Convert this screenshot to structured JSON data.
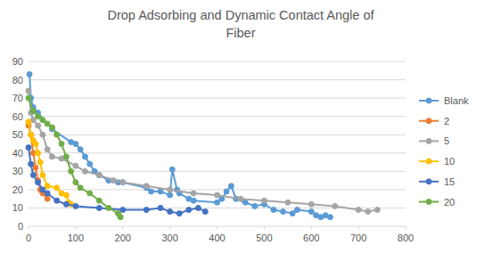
{
  "chart_data": {
    "type": "line",
    "title": "Drop Adsorbing and Dynamic Contact Angle of Fiber",
    "xlim": [
      0,
      800
    ],
    "xticks": [
      0,
      100,
      200,
      300,
      400,
      500,
      600,
      700,
      800
    ],
    "ylim": [
      0,
      90
    ],
    "yticks": [
      0,
      10,
      20,
      30,
      40,
      50,
      60,
      70,
      80,
      90
    ],
    "grid": true,
    "legend": "right",
    "marker": "circle",
    "series": [
      {
        "name": "Blank",
        "color": "#5b9bd5",
        "x": [
          2,
          5,
          10,
          20,
          50,
          90,
          100,
          110,
          120,
          130,
          140,
          150,
          170,
          190,
          200,
          250,
          260,
          280,
          300,
          305,
          315,
          320,
          340,
          350,
          400,
          410,
          420,
          430,
          440,
          460,
          480,
          500,
          520,
          540,
          560,
          570,
          600,
          610,
          620,
          630,
          640
        ],
        "values": [
          83,
          70,
          65,
          62,
          53,
          46,
          45,
          42,
          38,
          34,
          30,
          28,
          25,
          24,
          24,
          21,
          19,
          19,
          17,
          31,
          20,
          18,
          15,
          14,
          13,
          15,
          19,
          22,
          15,
          13,
          11,
          12,
          9,
          8,
          7,
          9,
          8,
          6,
          5,
          6,
          5
        ]
      },
      {
        "name": "2",
        "color": "#ed7d31",
        "x": [
          0,
          5,
          10,
          15,
          20,
          25,
          30,
          40
        ],
        "values": [
          55,
          50,
          40,
          32,
          25,
          20,
          18,
          15
        ]
      },
      {
        "name": "5",
        "color": "#a5a5a5",
        "x": [
          0,
          5,
          10,
          20,
          30,
          40,
          50,
          70,
          100,
          120,
          150,
          180,
          200,
          250,
          300,
          350,
          400,
          450,
          500,
          550,
          600,
          650,
          700,
          720,
          740
        ],
        "values": [
          74,
          62,
          58,
          55,
          50,
          42,
          38,
          37,
          33,
          30,
          28,
          25,
          24,
          22,
          20,
          18,
          17,
          15,
          14,
          13,
          12,
          11,
          9,
          8,
          9
        ]
      },
      {
        "name": "10",
        "color": "#ffc000",
        "x": [
          0,
          5,
          10,
          15,
          20,
          25,
          30,
          40,
          60,
          70,
          80,
          85,
          90
        ],
        "values": [
          57,
          50,
          47,
          45,
          40,
          35,
          28,
          22,
          21,
          18,
          17,
          13,
          12
        ]
      },
      {
        "name": "15",
        "color": "#4472c4",
        "x": [
          0,
          5,
          10,
          20,
          30,
          40,
          60,
          80,
          100,
          150,
          200,
          250,
          280,
          300,
          320,
          340,
          360,
          375
        ],
        "values": [
          43,
          34,
          28,
          24,
          20,
          18,
          14,
          12,
          11,
          10,
          9,
          9,
          10,
          8,
          7,
          9,
          10,
          8
        ]
      },
      {
        "name": "20",
        "color": "#70ad47",
        "x": [
          0,
          10,
          20,
          30,
          40,
          50,
          60,
          70,
          80,
          90,
          100,
          110,
          130,
          150,
          170,
          190,
          195
        ],
        "values": [
          70,
          63,
          60,
          58,
          56,
          54,
          50,
          45,
          38,
          30,
          24,
          21,
          18,
          14,
          10,
          7,
          5
        ]
      }
    ]
  }
}
